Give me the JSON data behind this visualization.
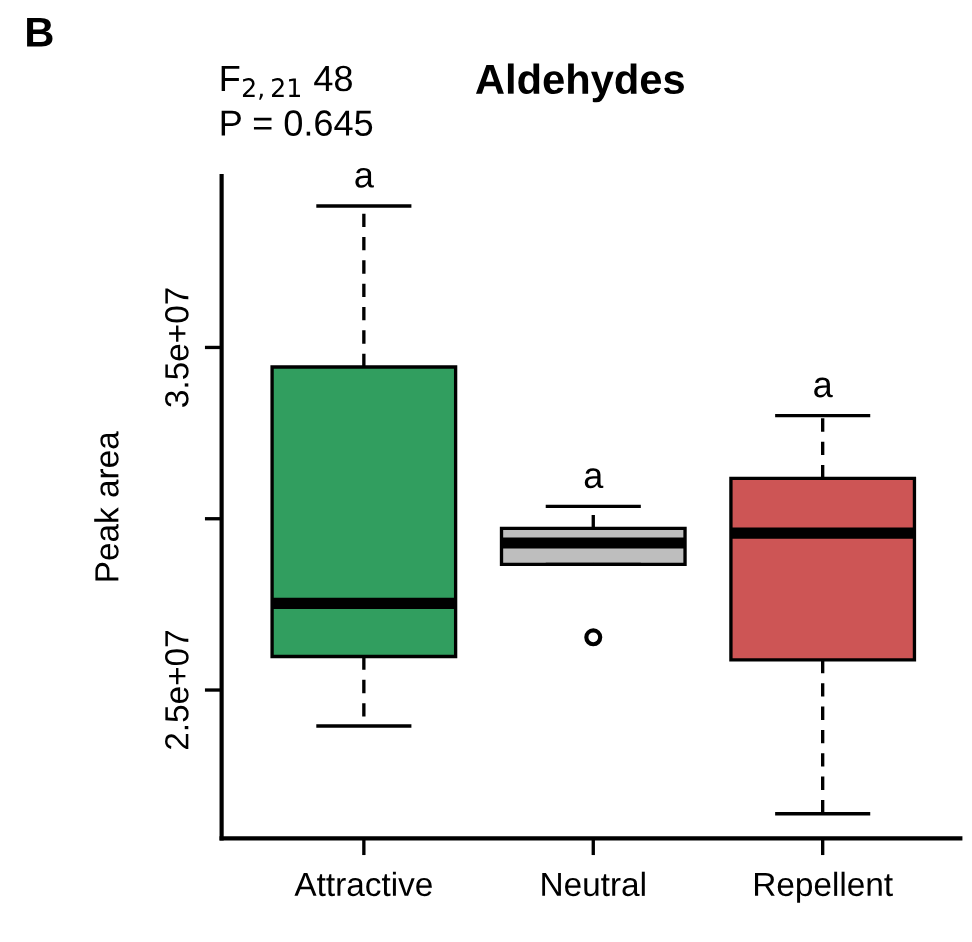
{
  "chart_data": {
    "type": "box",
    "title": "Aldehydes",
    "ylabel": "Peak area",
    "categories": [
      "Attractive",
      "Neutral",
      "Repellent"
    ],
    "colors": [
      "#319e5f",
      "#bebebe",
      "#cd5555"
    ],
    "boxes": [
      {
        "low": 23950000,
        "q1": 25980000,
        "median": 27530000,
        "q3": 34430000,
        "high": 39130000
      },
      {
        "low": 28670000,
        "q1": 28670000,
        "median": 29290000,
        "q3": 29720000,
        "high": 30360000,
        "outliers": [
          26540000
        ]
      },
      {
        "low": 21390000,
        "q1": 25880000,
        "median": 29580000,
        "q3": 31180000,
        "high": 33010000
      }
    ],
    "ylim": [
      20670000,
      40000000
    ],
    "yticks": [
      {
        "value": 25000000,
        "label": "2.5e+07"
      },
      {
        "value": 30000000,
        "label": null
      },
      {
        "value": 35000000,
        "label": "3.5e+07"
      }
    ],
    "annotations": [
      "B",
      "F$_{2,21}$ 48",
      "P = 0.645",
      {
        "text": "a",
        "x": "Attractive",
        "y": 39130000
      },
      {
        "text": "a",
        "x": "Neutral",
        "y": 30360000
      },
      {
        "text": "a",
        "x": "Repellent",
        "y": 33010000
      }
    ]
  }
}
